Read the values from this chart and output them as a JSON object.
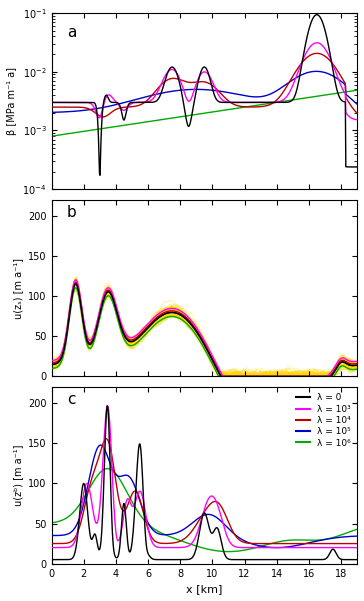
{
  "colors": {
    "black": "#000000",
    "magenta": "#FF00FF",
    "red": "#BB0000",
    "blue": "#0000CC",
    "green": "#00AA00",
    "yellow": "#FFD700"
  },
  "panel_labels": [
    "a",
    "b",
    "c"
  ],
  "ylabel_a": "β [MPa m⁻¹ a]",
  "ylabel_b": "u(zₛ) [m a⁻¹]",
  "ylabel_c": "u(zᵇ) [m a⁻¹]",
  "xlabel": "x [km]",
  "ylim_b": [
    0,
    220
  ],
  "ylim_c": [
    0,
    220
  ],
  "xlim": [
    0,
    19
  ],
  "xtick_vals": [
    0,
    2,
    4,
    6,
    8,
    10,
    12,
    14,
    16,
    18
  ],
  "legend_labels": [
    "λ = 0",
    "λ = 10³",
    "λ = 10⁴",
    "λ = 10⁵",
    "λ = 10⁶"
  ],
  "legend_colors": [
    "#000000",
    "#FF00FF",
    "#BB0000",
    "#0000CC",
    "#00AA00"
  ]
}
